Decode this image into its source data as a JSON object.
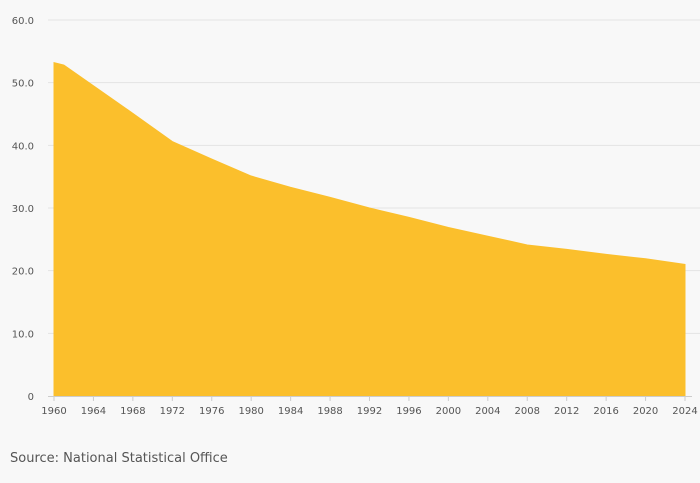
{
  "chart_data": {
    "type": "area",
    "title": "",
    "xlabel": "",
    "ylabel": "",
    "x": [
      1960,
      1961,
      1964,
      1968,
      1972,
      1976,
      1980,
      1984,
      1988,
      1992,
      1996,
      2000,
      2004,
      2008,
      2012,
      2016,
      2020,
      2024
    ],
    "values": [
      53.2,
      52.8,
      49.5,
      45.1,
      40.6,
      37.8,
      35.1,
      33.3,
      31.7,
      30.0,
      28.5,
      26.9,
      25.5,
      24.1,
      23.4,
      22.6,
      21.9,
      21.0
    ],
    "ylim": [
      0,
      60
    ],
    "yticks": [
      0,
      10,
      20,
      30,
      40,
      50,
      60
    ],
    "ytick_labels": [
      "0",
      "10.0",
      "20.0",
      "30.0",
      "40.0",
      "50.0",
      "60.0"
    ],
    "xticks": [
      1960,
      1964,
      1968,
      1972,
      1976,
      1980,
      1984,
      1988,
      1992,
      1996,
      2000,
      2004,
      2008,
      2012,
      2016,
      2020,
      2024
    ],
    "xtick_labels": [
      "1960",
      "1964",
      "1968",
      "1972",
      "1976",
      "1980",
      "1984",
      "1988",
      "1992",
      "1996",
      "2000",
      "2004",
      "2008",
      "2012",
      "2016",
      "2020",
      "2024"
    ],
    "grid": true,
    "area_color": "#fbbf2c",
    "grid_color": "#e4e4e4",
    "axis_color": "#cccccc"
  },
  "source": "Source: National Statistical Office"
}
